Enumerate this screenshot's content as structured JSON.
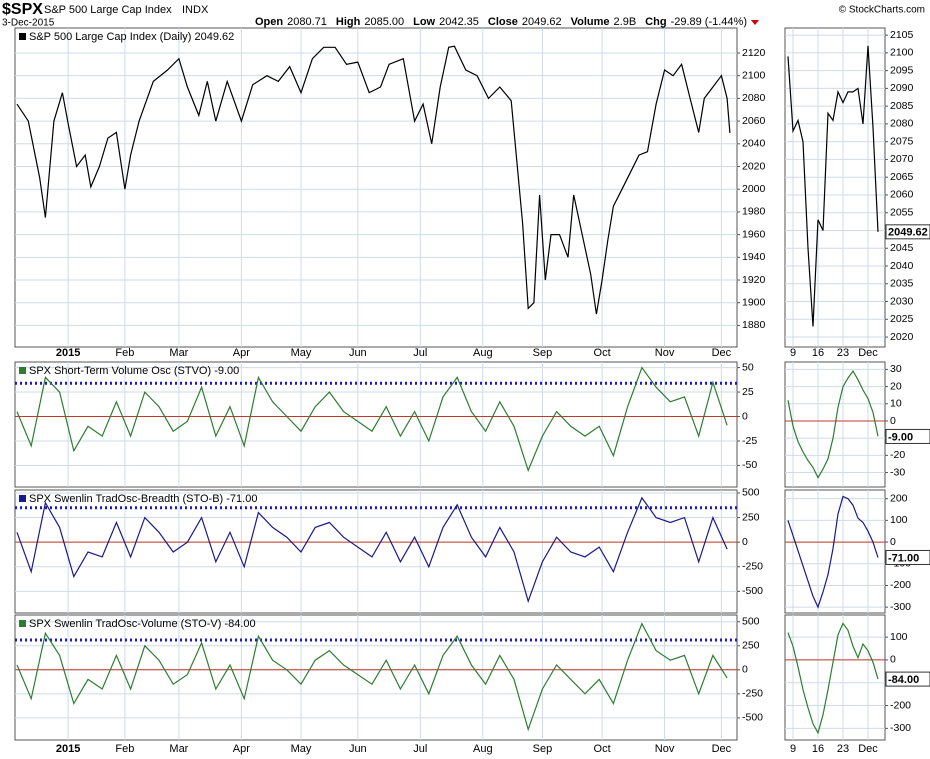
{
  "header": {
    "symbol": "$SPX",
    "name": "S&P 500 Large Cap Index",
    "exchange": "INDX",
    "date": "3-Dec-2015",
    "copyright": "© StockCharts.com",
    "stats": [
      {
        "label": "Open",
        "value": "2080.71"
      },
      {
        "label": "High",
        "value": "2085.00"
      },
      {
        "label": "Low",
        "value": "2042.35"
      },
      {
        "label": "Close",
        "value": "2049.62"
      },
      {
        "label": "Volume",
        "value": "2.9B"
      },
      {
        "label": "Chg",
        "value": "-29.89 (-1.44%)"
      }
    ]
  },
  "chart_data": [
    {
      "type": "line",
      "title": "S&P 500 Large Cap Index (Daily) 2049.62",
      "color": "#000000",
      "x": [
        -18,
        -14,
        -10,
        -8,
        -5,
        -2,
        0,
        3,
        6,
        8,
        11,
        14,
        17,
        20,
        22,
        25,
        30,
        35,
        39,
        42,
        46,
        49,
        52,
        56,
        61,
        65,
        70,
        74,
        78,
        82,
        86,
        90,
        94,
        98,
        102,
        106,
        110,
        113,
        118,
        122,
        125,
        128,
        131,
        134,
        136,
        140,
        144,
        148,
        152,
        156,
        160,
        162,
        164,
        166,
        168,
        170,
        173,
        176,
        178,
        181,
        184,
        186,
        188,
        190,
        192,
        195,
        198,
        201,
        204,
        207,
        210,
        213,
        216,
        219,
        222,
        224,
        227,
        230,
        232,
        233
      ],
      "values": [
        2075,
        2060,
        2010,
        1975,
        2060,
        2085,
        2058,
        2020,
        2030,
        2002,
        2020,
        2045,
        2050,
        2000,
        2030,
        2060,
        2095,
        2105,
        2115,
        2090,
        2065,
        2095,
        2060,
        2095,
        2060,
        2092,
        2100,
        2095,
        2108,
        2085,
        2115,
        2125,
        2125,
        2110,
        2112,
        2085,
        2090,
        2110,
        2115,
        2060,
        2075,
        2040,
        2090,
        2125,
        2126,
        2105,
        2100,
        2080,
        2090,
        2078,
        1970,
        1895,
        1900,
        1995,
        1920,
        1960,
        1960,
        1940,
        1995,
        1960,
        1925,
        1890,
        1920,
        1955,
        1985,
        2000,
        2015,
        2030,
        2033,
        2075,
        2105,
        2100,
        2110,
        2080,
        2050,
        2080,
        2090,
        2100,
        2080,
        2049.62
      ],
      "xlim": [
        -18.7,
        235.5
      ],
      "ylim": [
        1861,
        2142
      ],
      "xticks": [
        {
          "value": 0,
          "label": "2015"
        },
        {
          "value": 20,
          "label": "Feb"
        },
        {
          "value": 39,
          "label": "Mar"
        },
        {
          "value": 61,
          "label": "Apr"
        },
        {
          "value": 82,
          "label": "May"
        },
        {
          "value": 102,
          "label": "Jun"
        },
        {
          "value": 124,
          "label": "Jul"
        },
        {
          "value": 146,
          "label": "Aug"
        },
        {
          "value": 167,
          "label": "Sep"
        },
        {
          "value": 188,
          "label": "Oct"
        },
        {
          "value": 210,
          "label": "Nov"
        },
        {
          "value": 230,
          "label": "Dec"
        }
      ],
      "yticks": [
        1880,
        1900,
        1920,
        1940,
        1960,
        1980,
        2000,
        2020,
        2040,
        2060,
        2080,
        2100,
        2120
      ],
      "grid": true
    },
    {
      "type": "line",
      "title": "SPX Short-Term Volume Osc (STVO) -9.00",
      "color": "#2e7d32",
      "x": [
        -18,
        -13,
        -8,
        -3,
        2,
        7,
        12,
        17,
        22,
        27,
        32,
        37,
        42,
        47,
        52,
        57,
        62,
        67,
        72,
        77,
        82,
        87,
        92,
        97,
        102,
        107,
        112,
        117,
        122,
        127,
        132,
        137,
        142,
        147,
        152,
        157,
        162,
        167,
        172,
        177,
        182,
        187,
        192,
        197,
        202,
        207,
        212,
        217,
        222,
        227,
        232
      ],
      "values": [
        5,
        -30,
        40,
        25,
        -35,
        -10,
        -20,
        15,
        -20,
        25,
        10,
        -15,
        -5,
        30,
        -20,
        10,
        -30,
        40,
        15,
        0,
        -15,
        10,
        25,
        5,
        -5,
        -15,
        10,
        -20,
        5,
        -25,
        20,
        40,
        5,
        -15,
        15,
        -10,
        -55,
        -20,
        5,
        -10,
        -20,
        -10,
        -40,
        10,
        50,
        30,
        15,
        20,
        -20,
        35,
        -9
      ],
      "xlim": [
        -18.7,
        235.5
      ],
      "ylim": [
        -72,
        55.7
      ],
      "yticks": [
        -50,
        -25,
        0,
        25,
        50
      ],
      "xticks": [
        0,
        20,
        39,
        61,
        82,
        102,
        124,
        146,
        167,
        188,
        210,
        230
      ],
      "grid": true,
      "hlines": [
        {
          "value": 34,
          "color": "#1a1acc",
          "style": "dotted"
        },
        {
          "value": 0,
          "color": "#c0392b",
          "style": "solid"
        }
      ]
    },
    {
      "type": "line",
      "title": "SPX Swenlin TradOsc-Breadth (STO-B) -71.00",
      "color": "#1a1a8c",
      "x": [
        -18,
        -13,
        -8,
        -3,
        2,
        7,
        12,
        17,
        22,
        27,
        32,
        37,
        42,
        47,
        52,
        57,
        62,
        67,
        72,
        77,
        82,
        87,
        92,
        97,
        102,
        107,
        112,
        117,
        122,
        127,
        132,
        137,
        142,
        147,
        152,
        157,
        162,
        167,
        172,
        177,
        182,
        187,
        192,
        197,
        202,
        207,
        212,
        217,
        222,
        227,
        232
      ],
      "values": [
        100,
        -300,
        400,
        150,
        -350,
        -100,
        -150,
        200,
        -150,
        250,
        100,
        -100,
        0,
        250,
        -200,
        100,
        -250,
        300,
        150,
        50,
        -100,
        150,
        200,
        50,
        -50,
        -150,
        100,
        -200,
        50,
        -250,
        150,
        380,
        50,
        -150,
        150,
        -100,
        -600,
        -200,
        50,
        -100,
        -150,
        -50,
        -300,
        100,
        450,
        250,
        200,
        250,
        -200,
        250,
        -71
      ],
      "xlim": [
        -18.7,
        235.5
      ],
      "ylim": [
        -720,
        530
      ],
      "yticks": [
        -500,
        -250,
        0,
        250,
        500
      ],
      "xticks": [
        0,
        20,
        39,
        61,
        82,
        102,
        124,
        146,
        167,
        188,
        210,
        230
      ],
      "grid": true,
      "hlines": [
        {
          "value": 350,
          "color": "#1a1acc",
          "style": "dotted"
        },
        {
          "value": 0,
          "color": "#c0392b",
          "style": "solid"
        }
      ]
    },
    {
      "type": "line",
      "title": "SPX Swenlin TradOsc-Volume (STO-V) -84.00",
      "color": "#2e7d32",
      "x": [
        -18,
        -13,
        -8,
        -3,
        2,
        7,
        12,
        17,
        22,
        27,
        32,
        37,
        42,
        47,
        52,
        57,
        62,
        67,
        72,
        77,
        82,
        87,
        92,
        97,
        102,
        107,
        112,
        117,
        122,
        127,
        132,
        137,
        142,
        147,
        152,
        157,
        162,
        167,
        172,
        177,
        182,
        187,
        192,
        197,
        202,
        207,
        212,
        217,
        222,
        227,
        232
      ],
      "values": [
        50,
        -300,
        380,
        150,
        -350,
        -100,
        -200,
        150,
        -200,
        250,
        100,
        -150,
        -50,
        280,
        -200,
        50,
        -300,
        350,
        100,
        0,
        -150,
        100,
        200,
        50,
        -50,
        -150,
        100,
        -200,
        50,
        -250,
        150,
        350,
        50,
        -150,
        150,
        -100,
        -620,
        -200,
        50,
        -100,
        -250,
        -100,
        -350,
        100,
        480,
        200,
        100,
        150,
        -250,
        150,
        -84
      ],
      "xlim": [
        -18.7,
        235.5
      ],
      "ylim": [
        -730,
        570
      ],
      "yticks": [
        -500,
        -250,
        0,
        250,
        500
      ],
      "xticks": [
        {
          "value": 0,
          "label": "2015"
        },
        {
          "value": 20,
          "label": "Feb"
        },
        {
          "value": 39,
          "label": "Mar"
        },
        {
          "value": 61,
          "label": "Apr"
        },
        {
          "value": 82,
          "label": "May"
        },
        {
          "value": 102,
          "label": "Jun"
        },
        {
          "value": 124,
          "label": "Jul"
        },
        {
          "value": 146,
          "label": "Aug"
        },
        {
          "value": 167,
          "label": "Sep"
        },
        {
          "value": 188,
          "label": "Oct"
        },
        {
          "value": 210,
          "label": "Nov"
        },
        {
          "value": 230,
          "label": "Dec"
        }
      ],
      "grid": true,
      "hlines": [
        {
          "value": 310,
          "color": "#1a1acc",
          "style": "dotted"
        },
        {
          "value": 0,
          "color": "#c0392b",
          "style": "solid"
        }
      ]
    },
    {
      "type": "line",
      "color": "#000000",
      "last_label": "2049.62",
      "x": [
        -1,
        0,
        1,
        2,
        3,
        4,
        5,
        6,
        7,
        8,
        9,
        10,
        11,
        12,
        13,
        14,
        15,
        16,
        17
      ],
      "values": [
        2099,
        2078,
        2081,
        2075,
        2045,
        2023,
        2053,
        2050,
        2083,
        2081,
        2089,
        2086,
        2089,
        2089,
        2090,
        2080,
        2102,
        2079,
        2049.62
      ],
      "xlim": [
        -1.6,
        18.4
      ],
      "ylim": [
        2017.2,
        2107
      ],
      "xticks": [
        {
          "value": 0,
          "label": "9"
        },
        {
          "value": 5,
          "label": "16"
        },
        {
          "value": 10,
          "label": "23"
        },
        {
          "value": 15,
          "label": "Dec"
        }
      ],
      "yticks": [
        2020,
        2025,
        2030,
        2035,
        2040,
        2045,
        2050,
        2055,
        2060,
        2065,
        2070,
        2075,
        2080,
        2085,
        2090,
        2095,
        2100,
        2105
      ],
      "grid": true
    },
    {
      "type": "line",
      "color": "#2e7d32",
      "last_label": "-9.00",
      "x": [
        -1,
        0,
        1,
        2,
        3,
        4,
        5,
        6,
        7,
        8,
        9,
        10,
        11,
        12,
        13,
        14,
        15,
        16,
        17
      ],
      "values": [
        12,
        -3,
        -12,
        -18,
        -23,
        -27,
        -33,
        -28,
        -22,
        -10,
        8,
        20,
        25,
        29,
        24,
        18,
        13,
        5,
        -9
      ],
      "xlim": [
        -1.6,
        18.4
      ],
      "ylim": [
        -38.4,
        34.3
      ],
      "yticks": [
        -30,
        -20,
        -10,
        0,
        10,
        20,
        30
      ],
      "xticks": [
        0,
        5,
        10,
        15
      ],
      "grid": true,
      "hlines": [
        {
          "value": 0,
          "color": "#c0392b",
          "style": "solid"
        }
      ]
    },
    {
      "type": "line",
      "color": "#1a1a8c",
      "last_label": "-71.00",
      "x": [
        -1,
        0,
        1,
        2,
        3,
        4,
        5,
        6,
        7,
        8,
        9,
        10,
        11,
        12,
        13,
        14,
        15,
        16,
        17
      ],
      "values": [
        100,
        30,
        -40,
        -110,
        -180,
        -250,
        -300,
        -230,
        -150,
        -30,
        130,
        210,
        200,
        170,
        110,
        90,
        50,
        0,
        -71
      ],
      "xlim": [
        -1.6,
        18.4
      ],
      "ylim": [
        -327,
        240
      ],
      "yticks": [
        -300,
        -200,
        -100,
        0,
        100,
        200
      ],
      "xticks": [
        0,
        5,
        10,
        15
      ],
      "grid": true,
      "hlines": [
        {
          "value": 0,
          "color": "#c0392b",
          "style": "solid"
        }
      ]
    },
    {
      "type": "line",
      "color": "#2e7d32",
      "last_label": "-84.00",
      "x": [
        -1,
        0,
        1,
        2,
        3,
        4,
        5,
        6,
        7,
        8,
        9,
        10,
        11,
        12,
        13,
        14,
        15,
        16,
        17
      ],
      "values": [
        120,
        60,
        -30,
        -130,
        -210,
        -280,
        -320,
        -240,
        -130,
        -10,
        110,
        160,
        130,
        60,
        10,
        70,
        40,
        -10,
        -84
      ],
      "xlim": [
        -1.6,
        18.4
      ],
      "ylim": [
        -351,
        197
      ],
      "yticks": [
        -300,
        -200,
        -100,
        0,
        100
      ],
      "xticks": [
        {
          "value": 0,
          "label": "9"
        },
        {
          "value": 5,
          "label": "16"
        },
        {
          "value": 10,
          "label": "23"
        },
        {
          "value": 15,
          "label": "Dec"
        }
      ],
      "grid": true,
      "hlines": [
        {
          "value": 0,
          "color": "#c0392b",
          "style": "solid"
        }
      ]
    }
  ]
}
